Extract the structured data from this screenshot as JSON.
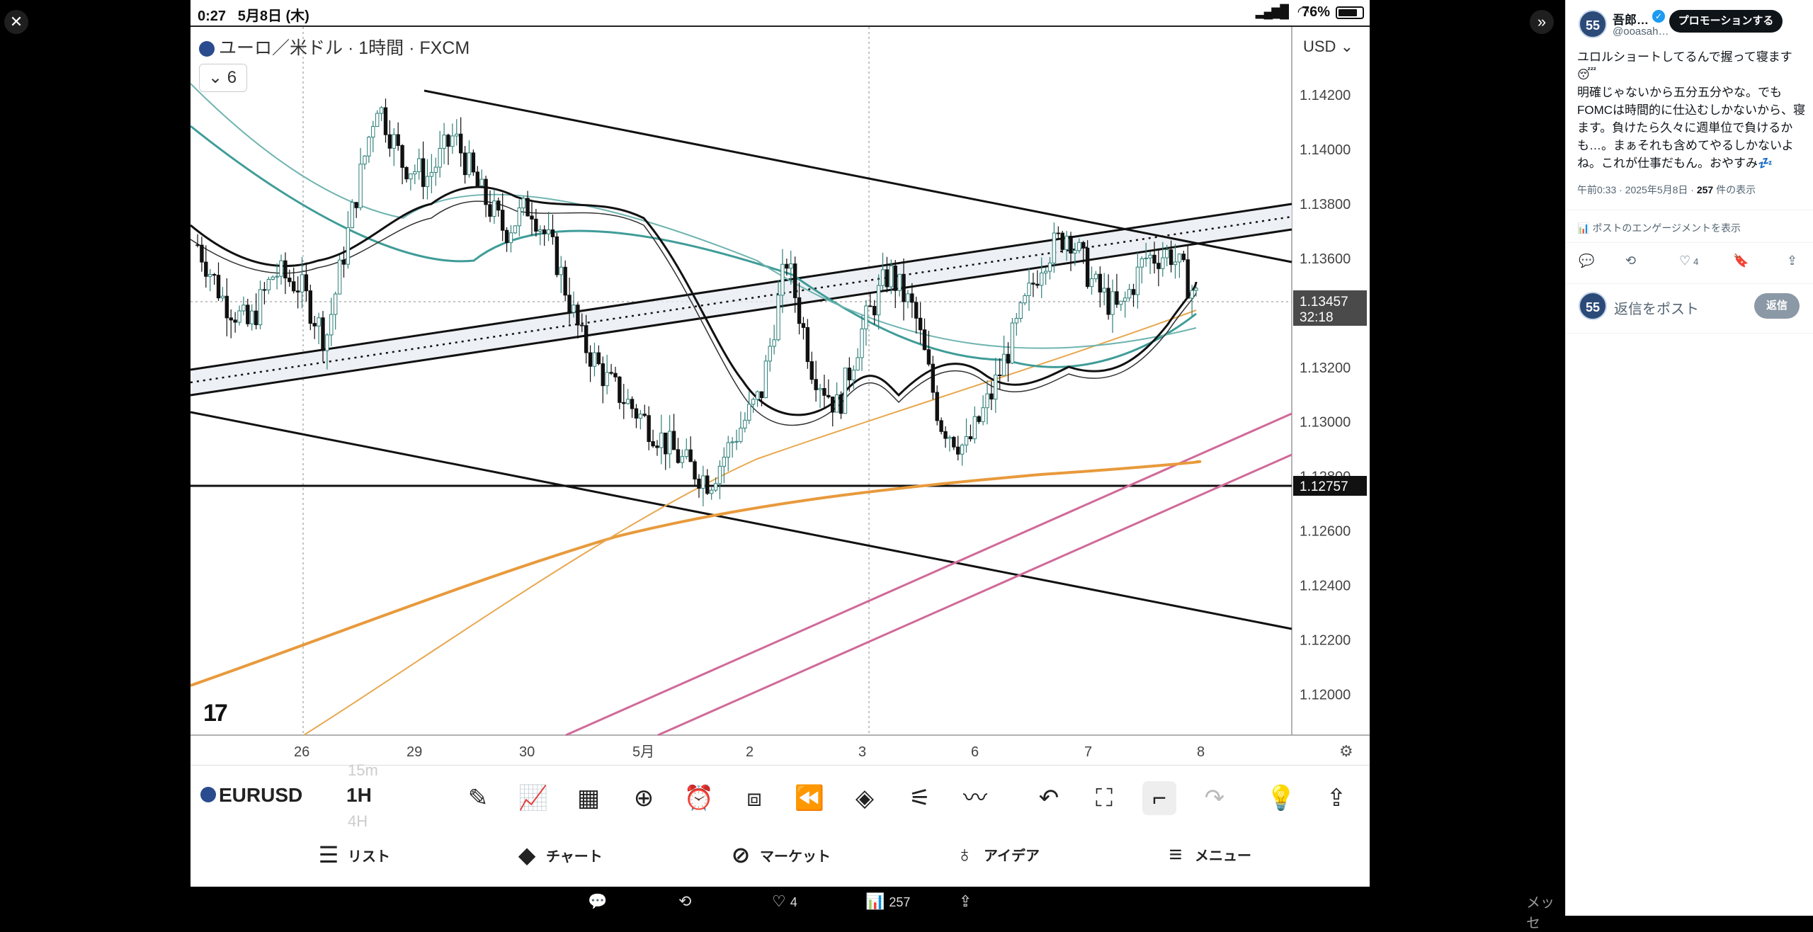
{
  "statusbar": {
    "time": "0:27",
    "date": "5月8日 (木)",
    "battery": "76%"
  },
  "chart": {
    "title": "ユーロ／米ドル · 1時間 · FXCM",
    "indicator_count": "6",
    "currency": "USD",
    "logo": "17",
    "price_labels": [
      "1.14200",
      "1.14000",
      "1.13800",
      "1.13600",
      "1.13200",
      "1.13000",
      "1.12800",
      "1.12600",
      "1.12400",
      "1.12200",
      "1.12000"
    ],
    "current_price": "1.13457",
    "countdown": "32:18",
    "line_price": "1.12757",
    "time_labels": [
      "26",
      "29",
      "30",
      "5月",
      "2",
      "3",
      "6",
      "7",
      "8"
    ]
  },
  "chart_data": {
    "type": "candlestick",
    "symbol": "EURUSD",
    "timeframe": "1H",
    "ylim": [
      1.1185,
      1.1445
    ],
    "x_ticks": [
      "26",
      "29",
      "30",
      "5月",
      "2",
      "3",
      "6",
      "7",
      "8"
    ],
    "last_price": 1.13457,
    "horizontal_line": 1.12757,
    "approx_close_path": [
      1.1365,
      1.1345,
      1.1335,
      1.1355,
      1.135,
      1.133,
      1.1375,
      1.1418,
      1.1395,
      1.139,
      1.1405,
      1.1385,
      1.137,
      1.138,
      1.136,
      1.133,
      1.1315,
      1.1305,
      1.1295,
      1.1285,
      1.1278,
      1.1295,
      1.131,
      1.136,
      1.132,
      1.1305,
      1.1335,
      1.1355,
      1.134,
      1.13,
      1.129,
      1.131,
      1.1335,
      1.136,
      1.137,
      1.135,
      1.134,
      1.136,
      1.1362,
      1.1346
    ]
  },
  "toolbar": {
    "symbol": "EURUSD",
    "interval": "1H",
    "ghost_top": "15m",
    "ghost_bottom": "4H"
  },
  "tabs": {
    "list": "リスト",
    "chart": "チャート",
    "market": "マーケット",
    "ideas": "アイデア",
    "menu": "メニュー"
  },
  "viewer_actions": {
    "likes": "4",
    "views": "257",
    "cutoff": "メッセ"
  },
  "tweet": {
    "avatar_text": "55",
    "name": "吾郎…",
    "handle": "@ooasah…",
    "promote": "プロモーションする",
    "text": "ユロルショートしてるんで握って寝ます😴\n明確じゃないから五分五分やな。でもFOMCは時間的に仕込むしかないから、寝ます。負けたら久々に週単位で負けるかも…。まぁそれも含めてやるしかないよね。これが仕事だもん。おやすみ💤",
    "time": "午前0:33 · 2025年5月8日 · ",
    "views": "257",
    "views_suffix": " 件の表示",
    "engagement": "ポストのエンゲージメントを表示",
    "likes": "4",
    "reply_placeholder": "返信をポスト",
    "reply_button": "返信"
  }
}
